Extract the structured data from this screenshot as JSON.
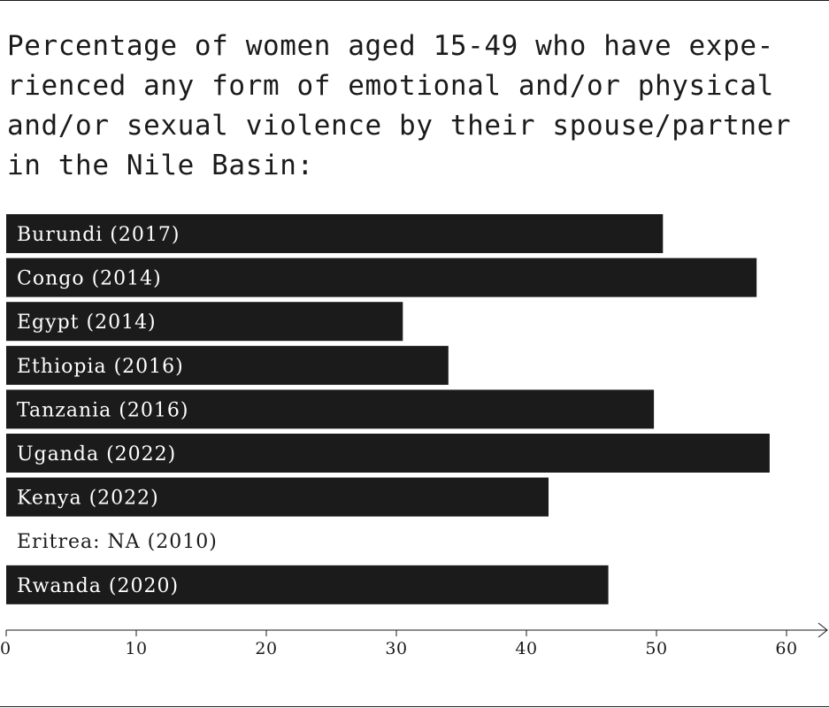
{
  "chart_data": {
    "type": "bar",
    "orientation": "horizontal",
    "title": "Percentage of women aged 15-49 who have expe-rienced any form of emotional and/or physical and/or sexual violence by their spouse/partner in the Nile Basin:",
    "xlabel": "",
    "ylabel": "",
    "xlim": [
      0,
      63
    ],
    "x_ticks": [
      "0",
      "10",
      "20",
      "30",
      "40",
      "50",
      "60"
    ],
    "grid": false,
    "legend": "none",
    "bar_color": "#1c1b1b",
    "label_color_on_bar": "#ffffff",
    "label_color_off_bar": "#1c1b1b",
    "categories": [
      "Burundi (2017)",
      "Congo (2014)",
      "Egypt (2014)",
      "Ethiopia (2016)",
      "Tanzania (2016)",
      "Uganda (2022)",
      "Kenya (2022)",
      "Eritrea: NA (2010)",
      "Rwanda (2020)"
    ],
    "values": [
      50.5,
      57.7,
      30.5,
      34.0,
      49.8,
      58.7,
      41.7,
      null,
      46.3
    ]
  }
}
